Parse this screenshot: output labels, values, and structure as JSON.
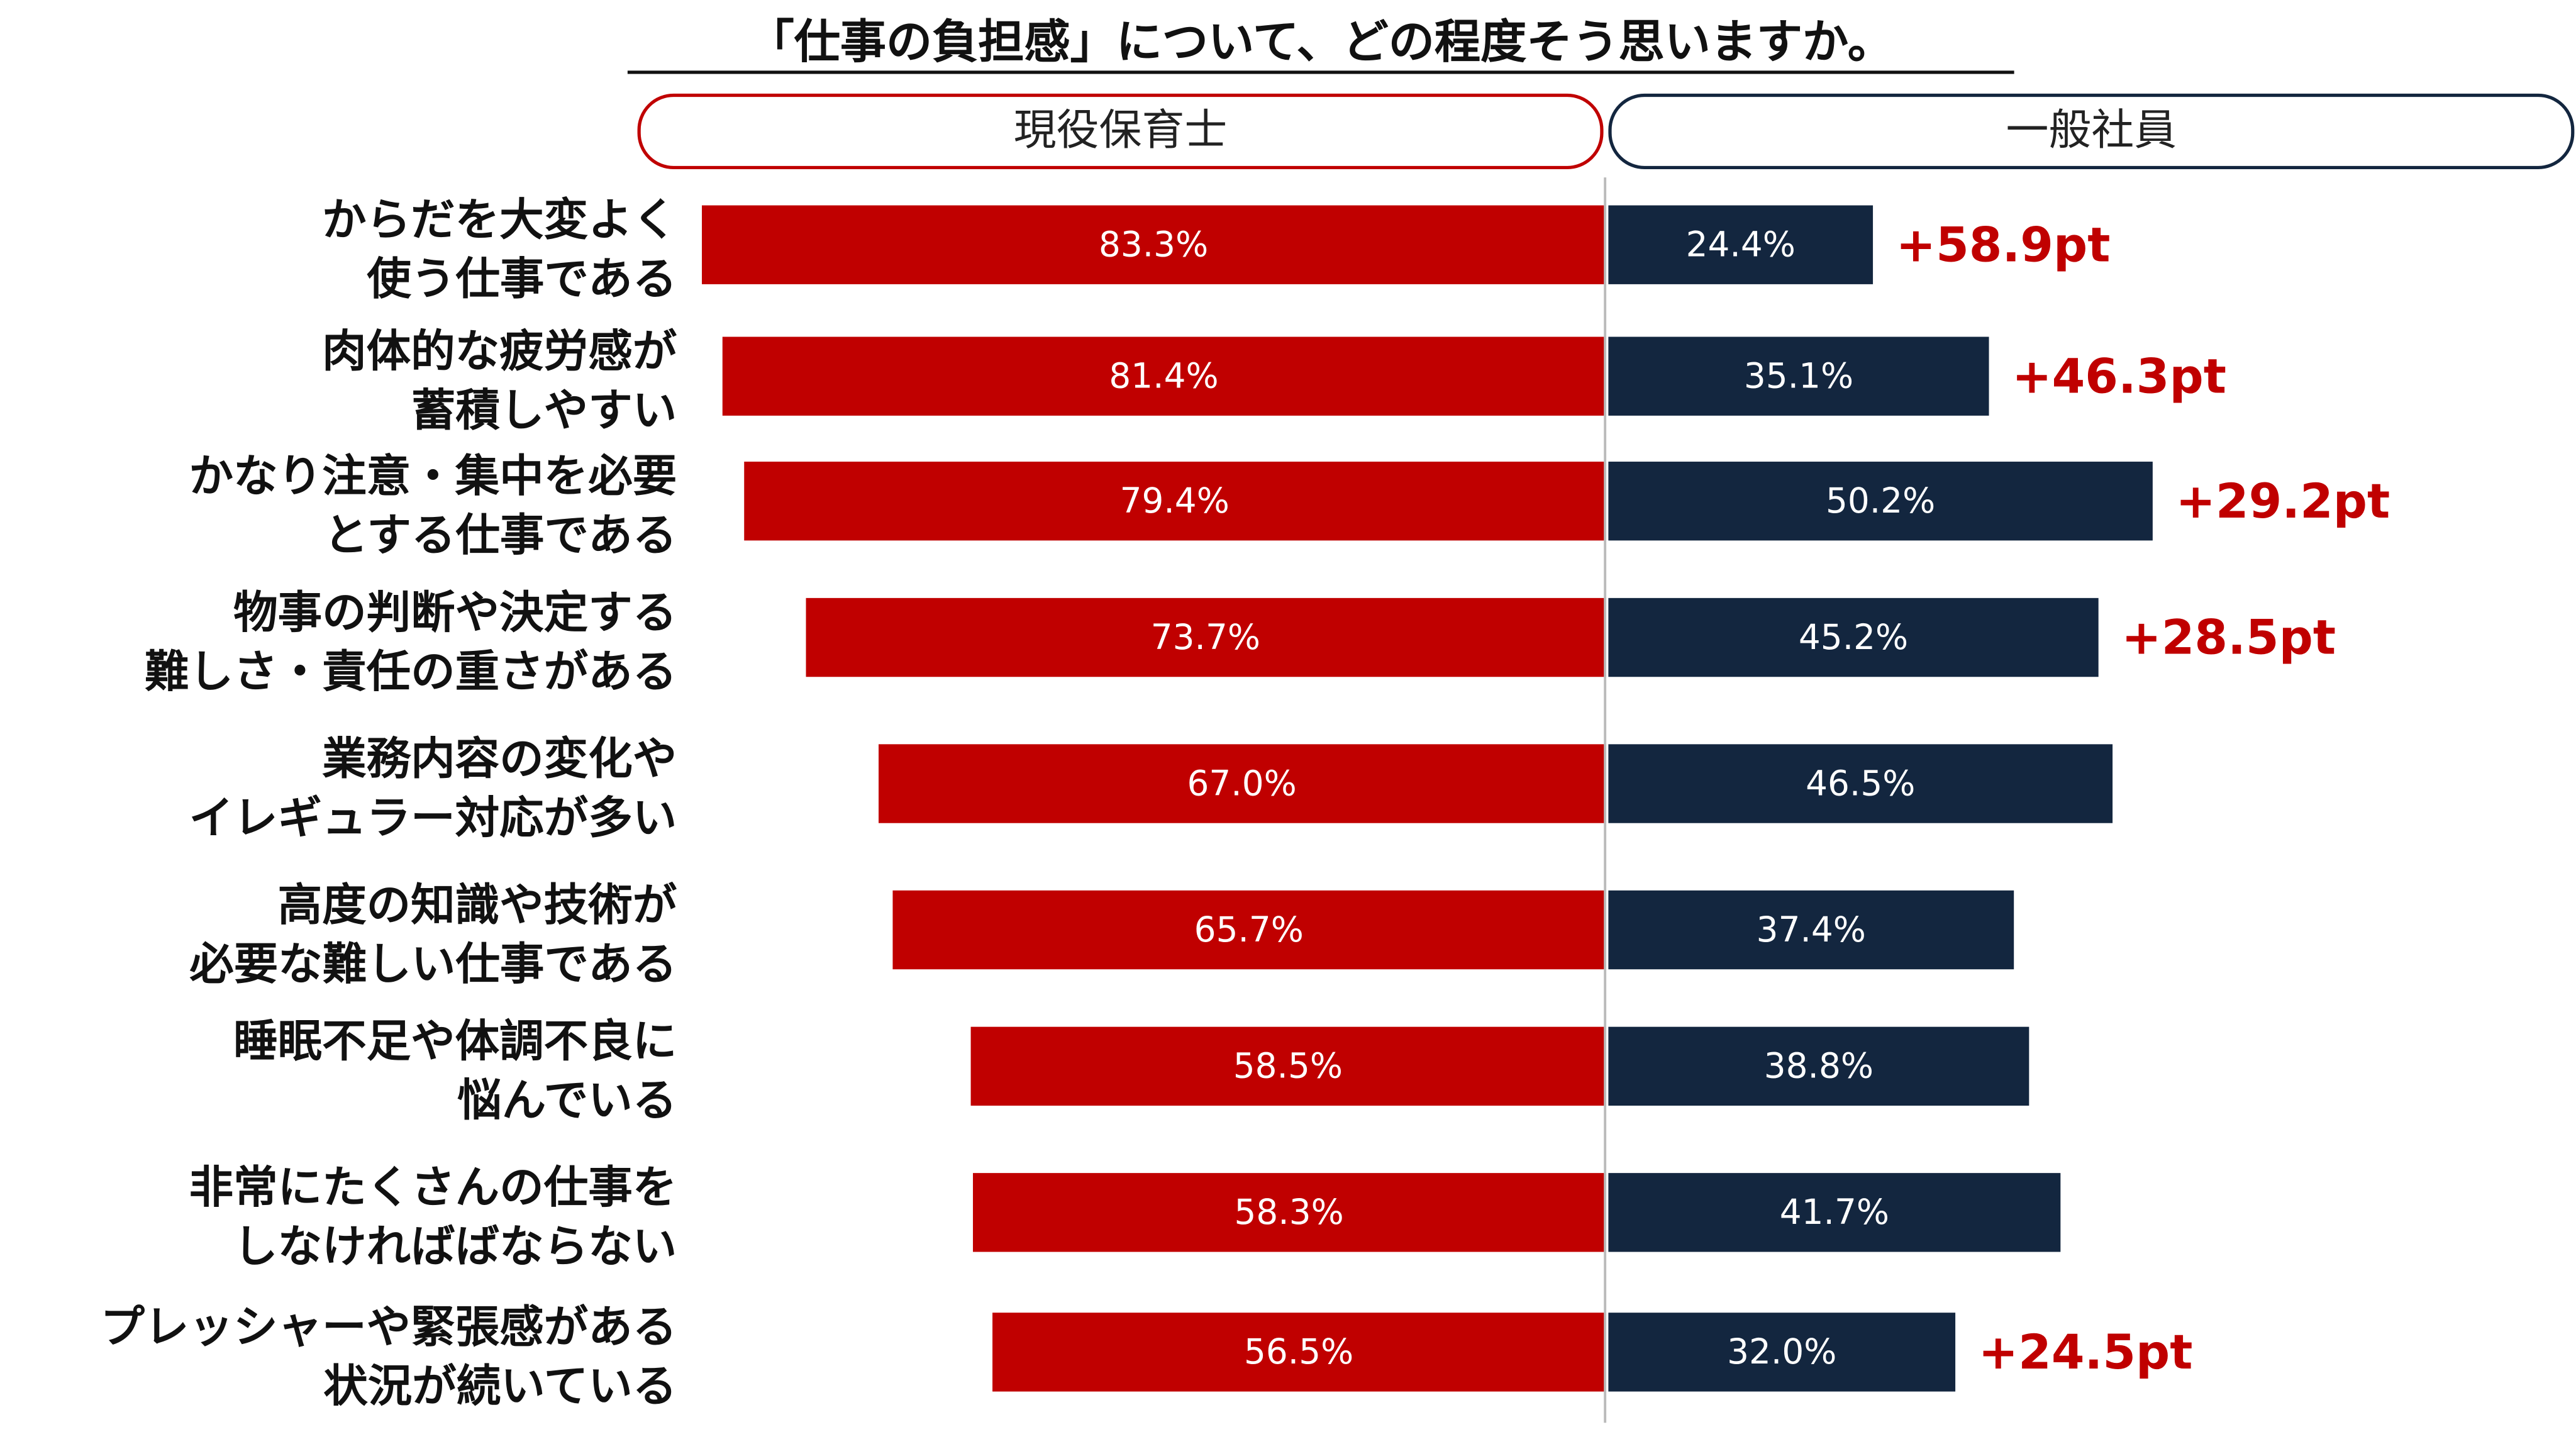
{
  "colors": {
    "series_a": "#c00000",
    "series_b": "#13263f",
    "diff": "#c00000",
    "axis": "#bbbbbb"
  },
  "chart_data": {
    "type": "bar",
    "orientation": "horizontal-butterfly",
    "title": "「仕事の負担感」について、どの程度そう思いますか。",
    "unit": "%",
    "xlim": [
      0,
      100
    ],
    "grid": false,
    "legend_placement": "top",
    "series": [
      {
        "name": "現役保育士",
        "side": "left",
        "values": [
          83.3,
          81.4,
          79.4,
          73.7,
          67.0,
          65.7,
          58.5,
          58.3,
          56.5
        ],
        "labels": [
          "83.3%",
          "81.4%",
          "79.4%",
          "73.7%",
          "67.0%",
          "65.7%",
          "58.5%",
          "58.3%",
          "56.5%"
        ]
      },
      {
        "name": "一般社員",
        "side": "right",
        "values": [
          24.4,
          35.1,
          50.2,
          45.2,
          46.5,
          37.4,
          38.8,
          41.7,
          32.0
        ],
        "labels": [
          "24.4%",
          "35.1%",
          "50.2%",
          "45.2%",
          "46.5%",
          "37.4%",
          "38.8%",
          "41.7%",
          "32.0%"
        ]
      }
    ],
    "categories": [
      [
        "からだを大変よく",
        "使う仕事である"
      ],
      [
        "肉体的な疲労感が",
        "蓄積しやすい"
      ],
      [
        "かなり注意・集中を必要",
        "とする仕事である"
      ],
      [
        "物事の判断や決定する",
        "難しさ・責任の重さがある"
      ],
      [
        "業務内容の変化や",
        "イレギュラー対応が多い"
      ],
      [
        "高度の知識や技術が",
        "必要な難しい仕事である"
      ],
      [
        "睡眠不足や体調不良に",
        "悩んでいる"
      ],
      [
        "非常にたくさんの仕事を",
        "しなければばならない"
      ],
      [
        "プレッシャーや緊張感がある",
        "状況が続いている"
      ]
    ],
    "annotations": [
      "+58.9pt",
      "+46.3pt",
      "+29.2pt",
      "+28.5pt",
      "",
      "",
      "",
      "",
      "+24.5pt"
    ]
  }
}
